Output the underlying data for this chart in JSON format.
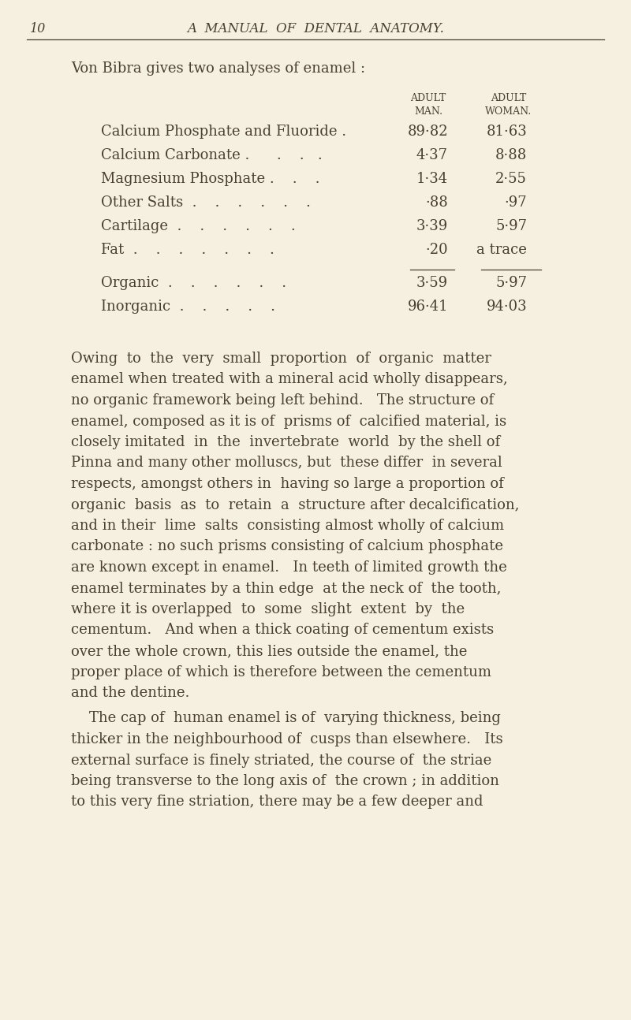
{
  "bg_color": "#f5f0e0",
  "text_color": "#4a3f32",
  "page_number": "10",
  "header_title": "A  MANUAL  OF  DENTAL  ANATOMY.",
  "intro_text": "Von Bibra gives two analyses of enamel :",
  "col_header1_line1": "ADULT",
  "col_header1_line2": "MAN.",
  "col_header2_line1": "ADULT",
  "col_header2_line2": "WOMAN.",
  "table_rows": [
    {
      "label": "Calcium Phosphate and Fluoride .",
      "val1": "89·82",
      "val2": "81·63"
    },
    {
      "label": "Calcium Carbonate .      .    .   .",
      "val1": "4·37",
      "val2": "8·88"
    },
    {
      "label": "Magnesium Phosphate .    .    .",
      "val1": "1·34",
      "val2": "2·55"
    },
    {
      "label": "Other Salts  .    .    .    .    .    .",
      "val1": "·88",
      "val2": "·97"
    },
    {
      "label": "Cartilage  .    .    .    .    .    .",
      "val1": "3·39",
      "val2": "5·97"
    },
    {
      "label": "Fat  .    .    .    .    .    .    .",
      "val1": "·20",
      "val2": "a trace"
    }
  ],
  "summary_rows": [
    {
      "label": "Organic  .    .    .    .    .    .",
      "val1": "3·59",
      "val2": "5·97"
    },
    {
      "label": "Inorganic  .    .    .    .    .",
      "val1": "96·41",
      "val2": "94·03"
    }
  ],
  "body_lines_para1": [
    "Owing  to  the  very  small  proportion  of  organic  matter",
    "enamel when treated with a mineral acid wholly disappears,",
    "no organic framework being left behind.   The structure of",
    "enamel, composed as it is of  prisms of  calcified material, is",
    "closely imitated  in  the  invertebrate  world  by the shell of",
    "Pinna and many other molluscs, but  these differ  in several",
    "respects, amongst others in  having so large a proportion of",
    "organic  basis  as  to  retain  a  structure after decalcification,",
    "and in their  lime  salts  consisting almost wholly of calcium",
    "carbonate : no such prisms consisting of calcium phosphate",
    "are known except in enamel.   In teeth of limited growth the",
    "enamel terminates by a thin edge  at the neck of  the tooth,",
    "where it is overlapped  to  some  slight  extent  by  the",
    "cementum.   And when a thick coating of cementum exists",
    "over the whole crown, this lies outside the enamel, the",
    "proper place of which is therefore between the cementum",
    "and the dentine."
  ],
  "body_lines_para2": [
    "    The cap of  human enamel is of  varying thickness, being",
    "thicker in the neighbourhood of  cusps than elsewhere.   Its",
    "external surface is finely striated, the course of  the striae",
    "being transverse to the long axis of  the crown ; in addition",
    "to this very fine striation, there may be a few deeper and"
  ]
}
